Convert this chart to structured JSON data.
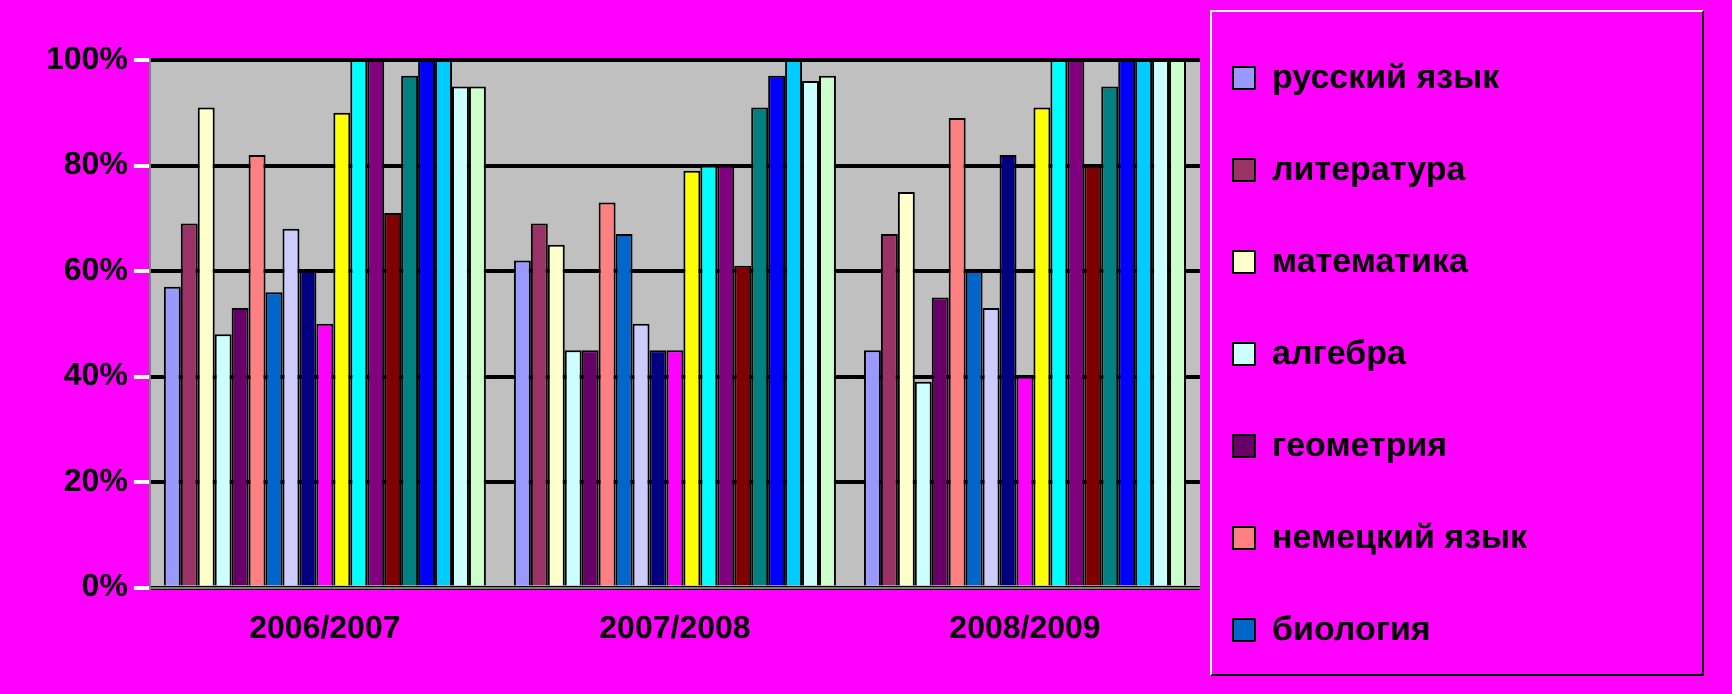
{
  "chart_data": {
    "type": "bar",
    "categories": [
      "2006/2007",
      "2007/2008",
      "2008/2009"
    ],
    "ylim": [
      0,
      100
    ],
    "yticks": [
      {
        "value": 0,
        "label": "0%"
      },
      {
        "value": 20,
        "label": "20%"
      },
      {
        "value": 40,
        "label": "40%"
      },
      {
        "value": 60,
        "label": "60%"
      },
      {
        "value": 80,
        "label": "80%"
      },
      {
        "value": 100,
        "label": "100%"
      }
    ],
    "grid": "y",
    "legend": "right",
    "series": [
      {
        "name": "русский язык",
        "color": "#9999ff",
        "values": [
          57,
          62,
          45
        ]
      },
      {
        "name": "литература",
        "color": "#993366",
        "values": [
          69,
          69,
          67
        ]
      },
      {
        "name": "математика",
        "color": "#ffffcc",
        "values": [
          91,
          65,
          75
        ]
      },
      {
        "name": "алгебра",
        "color": "#ccffff",
        "values": [
          48,
          45,
          39
        ]
      },
      {
        "name": "геометрия",
        "color": "#660066",
        "values": [
          53,
          45,
          55
        ]
      },
      {
        "name": "немецкий язык",
        "color": "#ff8080",
        "values": [
          82,
          73,
          89
        ]
      },
      {
        "name": "биология",
        "color": "#0066cc",
        "values": [
          56,
          67,
          60
        ]
      },
      {
        "color": "#ccccff",
        "values": [
          68,
          50,
          53
        ]
      },
      {
        "color": "#000080",
        "values": [
          60,
          45,
          82
        ]
      },
      {
        "color": "#ff00ff",
        "values": [
          50,
          45,
          40
        ]
      },
      {
        "color": "#ffff00",
        "values": [
          90,
          79,
          91
        ]
      },
      {
        "color": "#00ffff",
        "values": [
          100,
          80,
          100
        ]
      },
      {
        "color": "#800080",
        "values": [
          100,
          80,
          100
        ]
      },
      {
        "color": "#800000",
        "values": [
          71,
          61,
          80
        ]
      },
      {
        "color": "#008080",
        "values": [
          97,
          91,
          95
        ]
      },
      {
        "color": "#0000ff",
        "values": [
          100,
          97,
          100
        ]
      },
      {
        "color": "#00ccff",
        "values": [
          100,
          100,
          100
        ]
      },
      {
        "color": "#ccffff",
        "values": [
          95,
          96,
          100
        ]
      },
      {
        "color": "#ccffcc",
        "values": [
          95,
          97,
          100
        ]
      }
    ]
  }
}
